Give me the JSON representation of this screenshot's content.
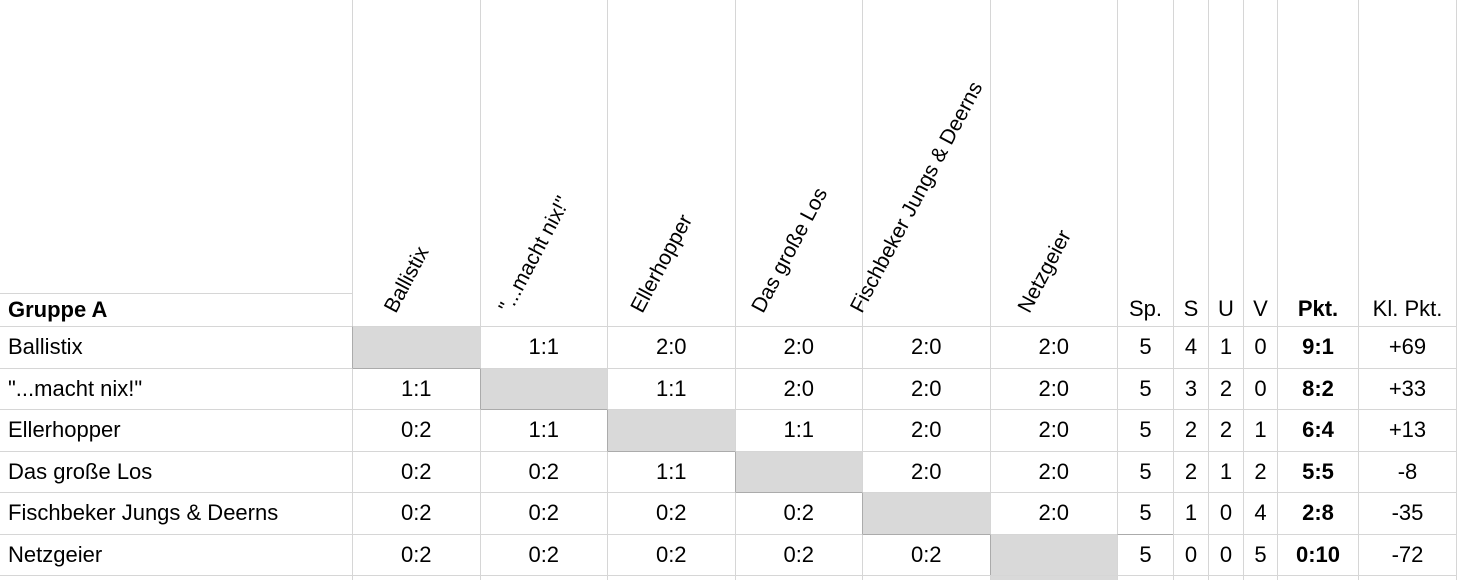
{
  "group_label": "Gruppe A",
  "teams": [
    "Ballistix",
    "\"...macht nix!\"",
    "Ellerhopper",
    "Das große Los",
    "Fischbeker Jungs & Deerns",
    "Netzgeier"
  ],
  "stat_headers": [
    "Sp.",
    "S",
    "U",
    "V",
    "Pkt.",
    "Kl. Pkt."
  ],
  "rows": [
    {
      "team": "Ballistix",
      "results": [
        "",
        "1:1",
        "2:0",
        "2:0",
        "2:0",
        "2:0"
      ],
      "sp": "5",
      "s": "4",
      "u": "1",
      "v": "0",
      "pkt": "9:1",
      "kl_pkt": "+69"
    },
    {
      "team": "\"...macht nix!\"",
      "results": [
        "1:1",
        "",
        "1:1",
        "2:0",
        "2:0",
        "2:0"
      ],
      "sp": "5",
      "s": "3",
      "u": "2",
      "v": "0",
      "pkt": "8:2",
      "kl_pkt": "+33"
    },
    {
      "team": "Ellerhopper",
      "results": [
        "0:2",
        "1:1",
        "",
        "1:1",
        "2:0",
        "2:0"
      ],
      "sp": "5",
      "s": "2",
      "u": "2",
      "v": "1",
      "pkt": "6:4",
      "kl_pkt": "+13"
    },
    {
      "team": "Das große Los",
      "results": [
        "0:2",
        "0:2",
        "1:1",
        "",
        "2:0",
        "2:0"
      ],
      "sp": "5",
      "s": "2",
      "u": "1",
      "v": "2",
      "pkt": "5:5",
      "kl_pkt": "-8"
    },
    {
      "team": "Fischbeker Jungs & Deerns",
      "results": [
        "0:2",
        "0:2",
        "0:2",
        "0:2",
        "",
        "2:0"
      ],
      "sp": "5",
      "s": "1",
      "u": "0",
      "v": "4",
      "pkt": "2:8",
      "kl_pkt": "-35"
    },
    {
      "team": "Netzgeier",
      "results": [
        "0:2",
        "0:2",
        "0:2",
        "0:2",
        "0:2",
        ""
      ],
      "sp": "5",
      "s": "0",
      "u": "0",
      "v": "5",
      "pkt": "0:10",
      "kl_pkt": "-72"
    }
  ],
  "colors": {
    "diagonal_fill": "#d9d9d9",
    "gridline": "#d6d6d6",
    "diagonal_border": "#ababab"
  }
}
